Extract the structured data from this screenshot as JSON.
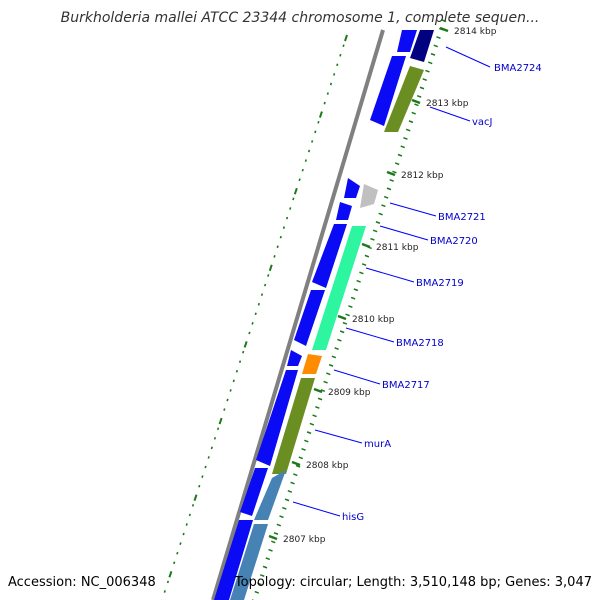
{
  "title": "Burkholderia mallei ATCC 23344 chromosome 1, complete sequen...",
  "footer": {
    "accession": "Accession: NC_006348",
    "summary": "Topology: circular; Length: 3,510,148 bp; Genes: 3,047"
  },
  "ticks": [
    {
      "label": "2814 kbp",
      "pos": 2814
    },
    {
      "label": "2813 kbp",
      "pos": 2813
    },
    {
      "label": "2812 kbp",
      "pos": 2812
    },
    {
      "label": "2811 kbp",
      "pos": 2811
    },
    {
      "label": "2810 kbp",
      "pos": 2810
    },
    {
      "label": "2809 kbp",
      "pos": 2809
    },
    {
      "label": "2808 kbp",
      "pos": 2808
    },
    {
      "label": "2807 kbp",
      "pos": 2807
    }
  ],
  "gene_labels": [
    {
      "name": "BMA2724"
    },
    {
      "name": "vacJ"
    },
    {
      "name": "BMA2721"
    },
    {
      "name": "BMA2720"
    },
    {
      "name": "BMA2719"
    },
    {
      "name": "BMA2718"
    },
    {
      "name": "BMA2717"
    },
    {
      "name": "murA"
    },
    {
      "name": "hisG"
    }
  ],
  "colors": {
    "cds": "#0a0af5",
    "cds_dark": "#000080",
    "olive": "#6b8e23",
    "grey": "#c0c0c0",
    "aquamarine": "#2ef5a0",
    "orange": "#ff8c00",
    "steelblue": "#4682b4",
    "backbone": "#808080",
    "tick": "#1a7a1a",
    "label_line": "#0000ff"
  }
}
